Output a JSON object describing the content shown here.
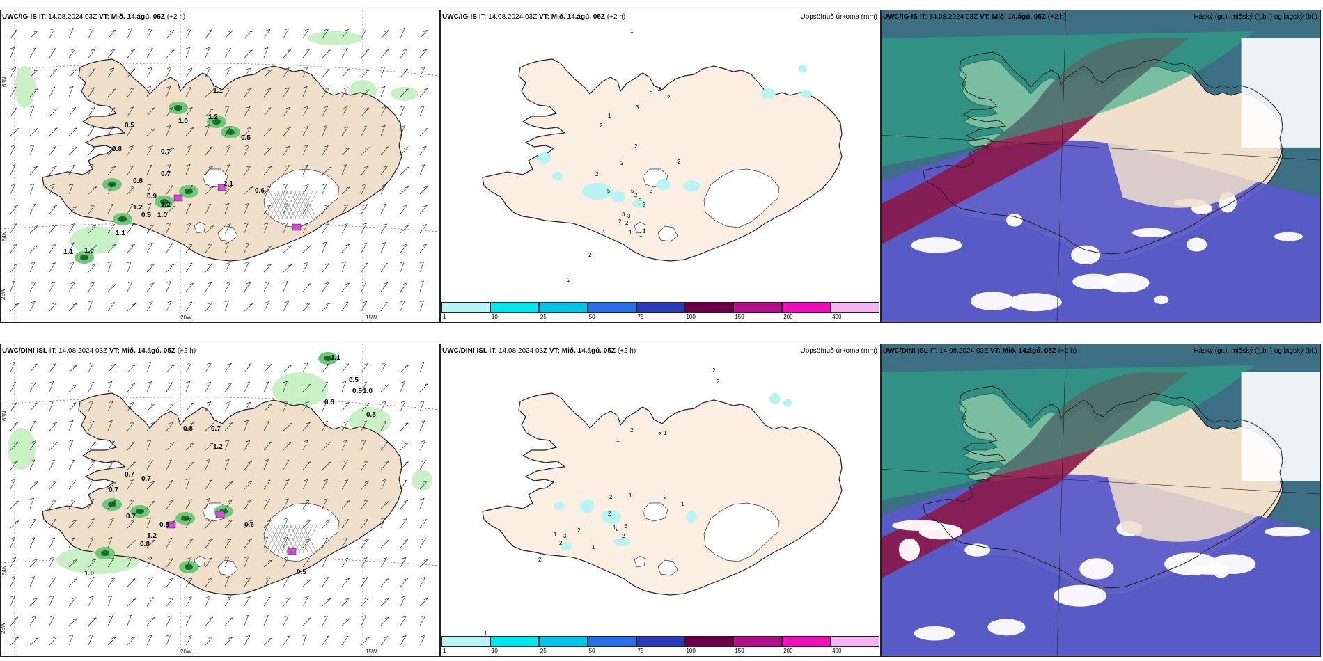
{
  "panels": [
    {
      "id": "p1",
      "model": "UWC/IG-IS",
      "it_label": "IT:",
      "it": "14.08.2024 03Z",
      "vt_label": "VT:",
      "vt": "Mið. 14.ágú. 05Z",
      "lead": "(+2 h)",
      "right_title": ""
    },
    {
      "id": "p2",
      "model": "UWC/IG-IS",
      "it_label": "IT:",
      "it": "14.08.2024 03Z",
      "vt_label": "VT:",
      "vt": "Mið. 14.ágú. 05Z",
      "lead": "(+2 h)",
      "right_title": "Uppsöfnuð úrkoma (mm)"
    },
    {
      "id": "p3",
      "model": "UWC/IG-IS",
      "it_label": "IT:",
      "it": "14.08.2024 03Z",
      "vt_label": "VT:",
      "vt": "Mið. 14.ágú. 05Z",
      "lead": "(+2 h)",
      "right_title": "Háský (gr.), miðský (fj.bl.) og lágský (bl.)"
    },
    {
      "id": "p4",
      "model": "UWC/DINI ISL",
      "it_label": "IT:",
      "it": "14.08.2024 03Z",
      "vt_label": "VT:",
      "vt": "Mið. 14.ágú. 05Z",
      "lead": "(+2 h)",
      "right_title": ""
    },
    {
      "id": "p5",
      "model": "UWC/DINI ISL",
      "it_label": "IT:",
      "it": "14.08.2024 03Z",
      "vt_label": "VT:",
      "vt": "Mið. 14.ágú. 05Z",
      "lead": "(+2 h)",
      "right_title": "Uppsöfnuð úrkoma (mm)"
    },
    {
      "id": "p6",
      "model": "UWC/DINI ISL",
      "it_label": "IT:",
      "it": "14.08.2024 03Z",
      "vt_label": "VT:",
      "vt": "Mið. 14.ágú. 05Z",
      "lead": "(+2 h)",
      "right_title": "Háský (gr.), miðský (fj.bl.) og lágský (bl.)"
    }
  ],
  "axes": {
    "lat_upper": "65N",
    "lat_lower": "64N",
    "lon_left": "25W",
    "lon_mid": "20W",
    "lon_right": "15W"
  },
  "colorbar": {
    "ticks": [
      "1",
      "10",
      "25",
      "50",
      "75",
      "100",
      "150",
      "200",
      "400"
    ],
    "colors": [
      "#b8f4f4",
      "#00e8ee",
      "#00c4ea",
      "#2a6ee8",
      "#2a3ab8",
      "#6a0048",
      "#b0108a",
      "#f010b8",
      "#f4b4f4"
    ]
  },
  "colors": {
    "land": "#efdfcb",
    "land_precip": "#fbeee2",
    "sea": "#ffffff",
    "precip_light": "#c4f0c0",
    "precip_mid": "#6ec87a",
    "precip_dark": "#1e6a2a",
    "high_cloud": "#2aa884",
    "mid_cloud": "#8a1848",
    "low_cloud": "#5a58c8"
  },
  "precip_labels_top_left": [
    "0.5",
    "1.1",
    "1.0",
    "1.2",
    "0.5",
    "0.7",
    "0.8",
    "0.8",
    "0.7",
    "0.9",
    "1.2",
    "1.0",
    "0.5",
    "1.2",
    "1.1",
    "1.0",
    "1.1",
    "0.6",
    "2.1"
  ],
  "precip_labels_bottom_left": [
    "1.1",
    "0.5",
    "0.6",
    "0.5",
    "1.0",
    "0.5",
    "0.8",
    "0.7",
    "1.2",
    "0.7",
    "0.7",
    "0.7",
    "0.7",
    "0.8",
    "1.2",
    "0.8",
    "0.6",
    "0.5",
    "1.0"
  ],
  "precip_labels_top_mid": [
    "1",
    "2",
    "2",
    "3",
    "3",
    "1",
    "2",
    "2",
    "2",
    "3",
    "2",
    "5",
    "5",
    "3",
    "3",
    "2",
    "3",
    "1",
    "3",
    "1",
    "2",
    "2",
    "1",
    "1",
    "1",
    "2",
    "2",
    "2"
  ],
  "precip_labels_bottom_mid": [
    "2",
    "2",
    "1",
    "2",
    "2",
    "1",
    "1",
    "2",
    "2",
    "3",
    "2",
    "1",
    "2",
    "2",
    "2",
    "1",
    "1",
    "2",
    "3",
    "1",
    "1",
    "2"
  ]
}
